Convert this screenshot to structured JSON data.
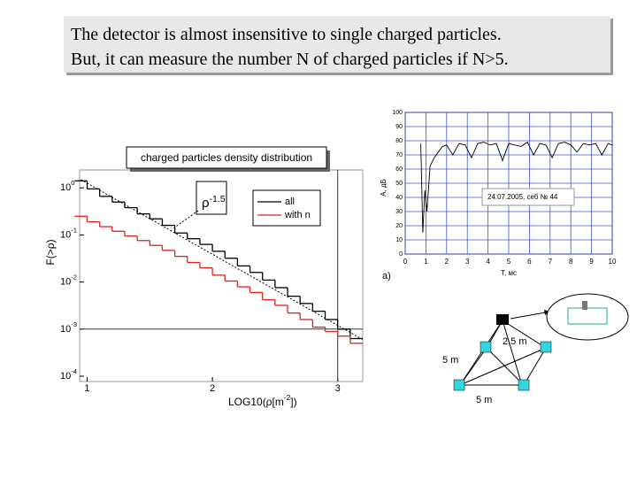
{
  "header": {
    "lines": [
      "The detector is almost insensitive to single charged particles.",
      "But, it can measure the number N of charged particles if N>5."
    ]
  },
  "chart_data": [
    {
      "type": "step",
      "title": "charged particles density distribution",
      "y_label": "F(>ρ)",
      "x_label": {
        "before": "LOG10(ρ[m",
        "sup": "-2",
        "after": "])"
      },
      "log_y": true,
      "xlim": [
        0.94,
        3.2
      ],
      "ylim": [
        0.0001,
        2.4
      ],
      "xticks": [
        1,
        2,
        3
      ],
      "yticks": [
        {
          "value": 1,
          "label": "10",
          "sup": "0"
        },
        {
          "value": 0.1,
          "label": "10",
          "sup": "-1"
        },
        {
          "value": 0.01,
          "label": "10",
          "sup": "-2"
        },
        {
          "value": 0.001,
          "label": "10",
          "sup": "-3"
        },
        {
          "value": 0.0001,
          "label": "10",
          "sup": "-4"
        }
      ],
      "x": [
        0.95,
        1.05,
        1.15,
        1.25,
        1.35,
        1.45,
        1.55,
        1.65,
        1.75,
        1.85,
        1.95,
        2.05,
        2.15,
        2.25,
        2.35,
        2.45,
        2.55,
        2.65,
        2.75,
        2.85,
        2.95,
        3.05,
        3.15
      ],
      "series": [
        {
          "name": "all",
          "color": "#000000",
          "values": [
            1.41,
            0.95,
            0.66,
            0.5,
            0.38,
            0.28,
            0.22,
            0.16,
            0.11,
            0.083,
            0.063,
            0.045,
            0.032,
            0.022,
            0.016,
            0.011,
            0.0076,
            0.005,
            0.0035,
            0.0024,
            0.0016,
            0.001,
            0.00063
          ]
        },
        {
          "name": "with n",
          "color": "#e0201a",
          "values": [
            0.25,
            0.19,
            0.15,
            0.12,
            0.095,
            0.076,
            0.06,
            0.047,
            0.035,
            0.026,
            0.02,
            0.014,
            0.0105,
            0.0079,
            0.006,
            0.0042,
            0.0032,
            0.0022,
            0.0016,
            0.0011,
            0.00089,
            0.00071,
            0.0005
          ]
        }
      ],
      "fit": {
        "x": [
          0.95,
          3.2
        ],
        "values": [
          1.5,
          0.0006
        ],
        "label": "ρ",
        "sup": "-1.5"
      },
      "vlines": [
        3
      ],
      "hlines": [
        0.001
      ]
    },
    {
      "type": "line",
      "annotation": "24.07.2005, себ № 44",
      "panel_label": "a)",
      "y_label": "A, дБ",
      "x_label": "T, мс",
      "xlim": [
        0,
        10
      ],
      "ylim": [
        0,
        100
      ],
      "xticks": [
        0,
        1,
        2,
        3,
        4,
        5,
        6,
        7,
        8,
        9,
        10
      ],
      "yticks": [
        0,
        10,
        20,
        30,
        40,
        50,
        60,
        70,
        80,
        90,
        100
      ],
      "grid": true,
      "x": [
        0.75,
        0.85,
        0.95,
        1.05,
        1.2,
        1.4,
        1.6,
        1.8,
        2.0,
        2.3,
        2.6,
        2.9,
        3.2,
        3.5,
        3.8,
        4.1,
        4.4,
        4.7,
        5.0,
        5.3,
        5.6,
        5.9,
        6.2,
        6.5,
        6.8,
        7.1,
        7.4,
        7.7,
        8.0,
        8.3,
        8.6,
        8.9,
        9.2,
        9.5,
        9.8,
        10
      ],
      "series": [
        {
          "color": "#000000",
          "values": [
            78,
            15,
            45,
            30,
            62,
            68,
            72,
            76,
            77,
            70,
            78,
            77,
            68,
            78,
            79,
            77,
            78,
            66,
            78,
            77,
            76,
            79,
            70,
            78,
            77,
            68,
            78,
            79,
            77,
            72,
            78,
            77,
            78,
            70,
            78,
            77
          ]
        }
      ]
    }
  ],
  "diagram": {
    "labels": [
      "2.5 m",
      "5 m",
      "5 m"
    ]
  }
}
